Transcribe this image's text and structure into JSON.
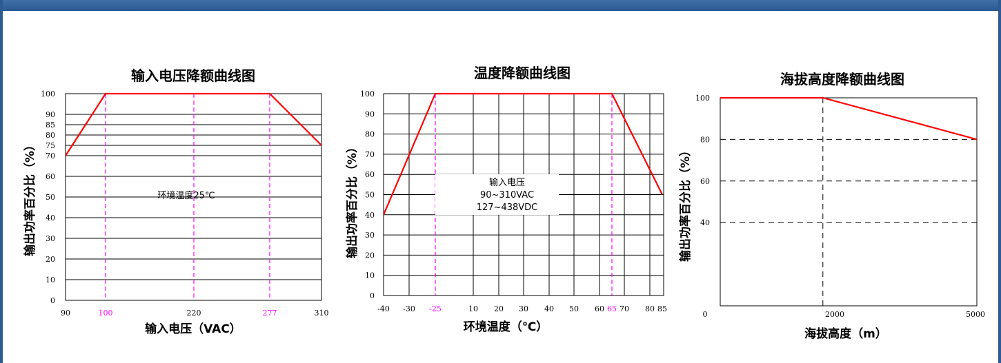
{
  "window": {
    "accent_color": "#2c5b94"
  },
  "chart_data": [
    {
      "type": "line",
      "title": "输入电压降额曲线图",
      "xlabel": "输入电压（VAC）",
      "ylabel": "输出功率百分比（%）",
      "x_ticks": [
        "90",
        "100",
        "220",
        "277",
        "310"
      ],
      "y_ticks": [
        "0",
        "10",
        "20",
        "30",
        "40",
        "50",
        "60",
        "70",
        "75",
        "80",
        "85",
        "90",
        "100"
      ],
      "xlim": [
        90,
        310
      ],
      "ylim": [
        0,
        100
      ],
      "grid": true,
      "highlight_x": [
        100,
        220,
        277
      ],
      "annotation": "环境温度25℃",
      "line_color": "#ff0000",
      "marker_color": "#ff00ff",
      "series": [
        {
          "x": [
            90,
            100,
            277,
            310
          ],
          "y": [
            70,
            100,
            100,
            75
          ]
        }
      ]
    },
    {
      "type": "line",
      "title": "温度降额曲线图",
      "xlabel": "环境温度（℃）",
      "ylabel": "输出功率百分比（%）",
      "x_ticks": [
        "-40",
        "-30",
        "-25",
        "10",
        "20",
        "30",
        "40",
        "50",
        "60",
        "65",
        "70",
        "80",
        "85"
      ],
      "y_ticks": [
        "0",
        "10",
        "20",
        "30",
        "40",
        "50",
        "60",
        "70",
        "80",
        "90",
        "100"
      ],
      "xlim": [
        -40,
        85
      ],
      "ylim": [
        0,
        100
      ],
      "grid": true,
      "highlight_x": [
        -25,
        65
      ],
      "annotation_lines": [
        "输入电压",
        "90~310VAC",
        "127~438VDC"
      ],
      "line_color": "#ff0000",
      "marker_color": "#ff00ff",
      "series": [
        {
          "x": [
            -40,
            -25,
            65,
            85
          ],
          "y": [
            40,
            100,
            100,
            50
          ]
        }
      ]
    },
    {
      "type": "line",
      "title": "海拔高度降额曲线图",
      "xlabel": "海拔高度（m）",
      "ylabel": "输出功率百分比（%）",
      "x_ticks": [
        "0",
        "2000",
        "5000"
      ],
      "y_ticks": [
        "40",
        "60",
        "80",
        "100"
      ],
      "xlim": [
        0,
        5000
      ],
      "ylim": [
        0,
        100
      ],
      "grid": "dashed",
      "line_color": "#ff0000",
      "series": [
        {
          "x": [
            0,
            2000,
            5000
          ],
          "y": [
            100,
            100,
            80
          ]
        }
      ]
    }
  ]
}
